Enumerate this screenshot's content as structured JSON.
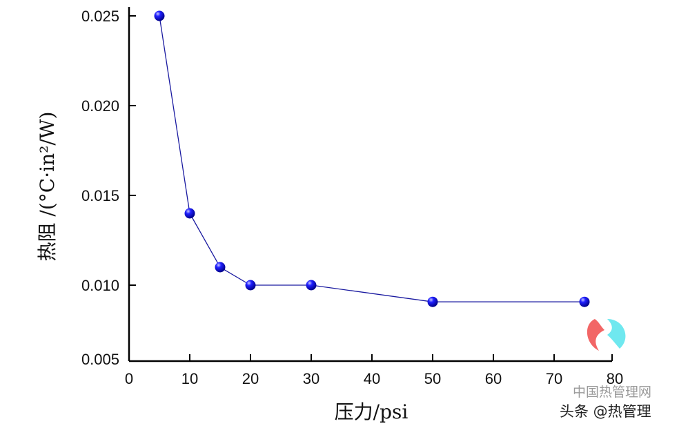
{
  "chart_data": {
    "type": "line",
    "title": "",
    "xlabel": "压力/psi",
    "ylabel": "热阻 /(°C·in²/W)",
    "xlim": [
      0,
      80
    ],
    "ylim": [
      0.005,
      0.025
    ],
    "x_ticks": [
      "0",
      "10",
      "20",
      "30",
      "40",
      "50",
      "60",
      "70",
      "80"
    ],
    "y_ticks": [
      "0.005",
      "0.010",
      "0.015",
      "0.020",
      "0.025"
    ],
    "grid": false,
    "series": [
      {
        "name": "热阻",
        "color": "#1a1aa0",
        "marker_color": "#1010e0",
        "x": [
          5,
          10,
          15,
          20,
          30,
          50,
          75
        ],
        "y": [
          0.025,
          0.014,
          0.011,
          0.01,
          0.01,
          0.0089,
          0.0089
        ]
      }
    ]
  },
  "watermark": {
    "site": "中国热管理网",
    "credit": "头条 @热管理"
  }
}
